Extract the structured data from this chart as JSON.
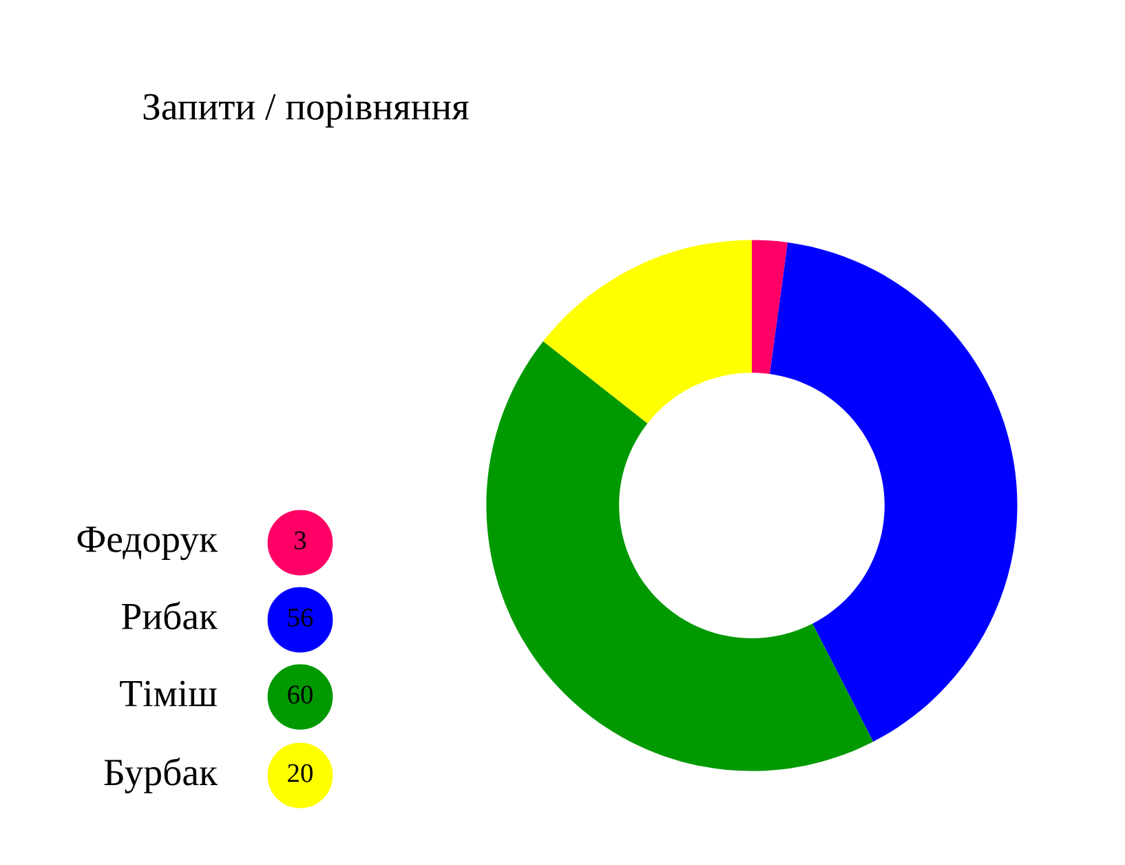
{
  "chart_data": {
    "type": "donut",
    "title": "Запити / порівняння",
    "categories": [
      "Федорук",
      "Рибак",
      "Тіміш",
      "Бурбак"
    ],
    "values": [
      3,
      56,
      60,
      20
    ],
    "colors": [
      "#ff0066",
      "#0000ff",
      "#009900",
      "#ffff00"
    ],
    "data_labels": true,
    "legend": "bottom left"
  }
}
